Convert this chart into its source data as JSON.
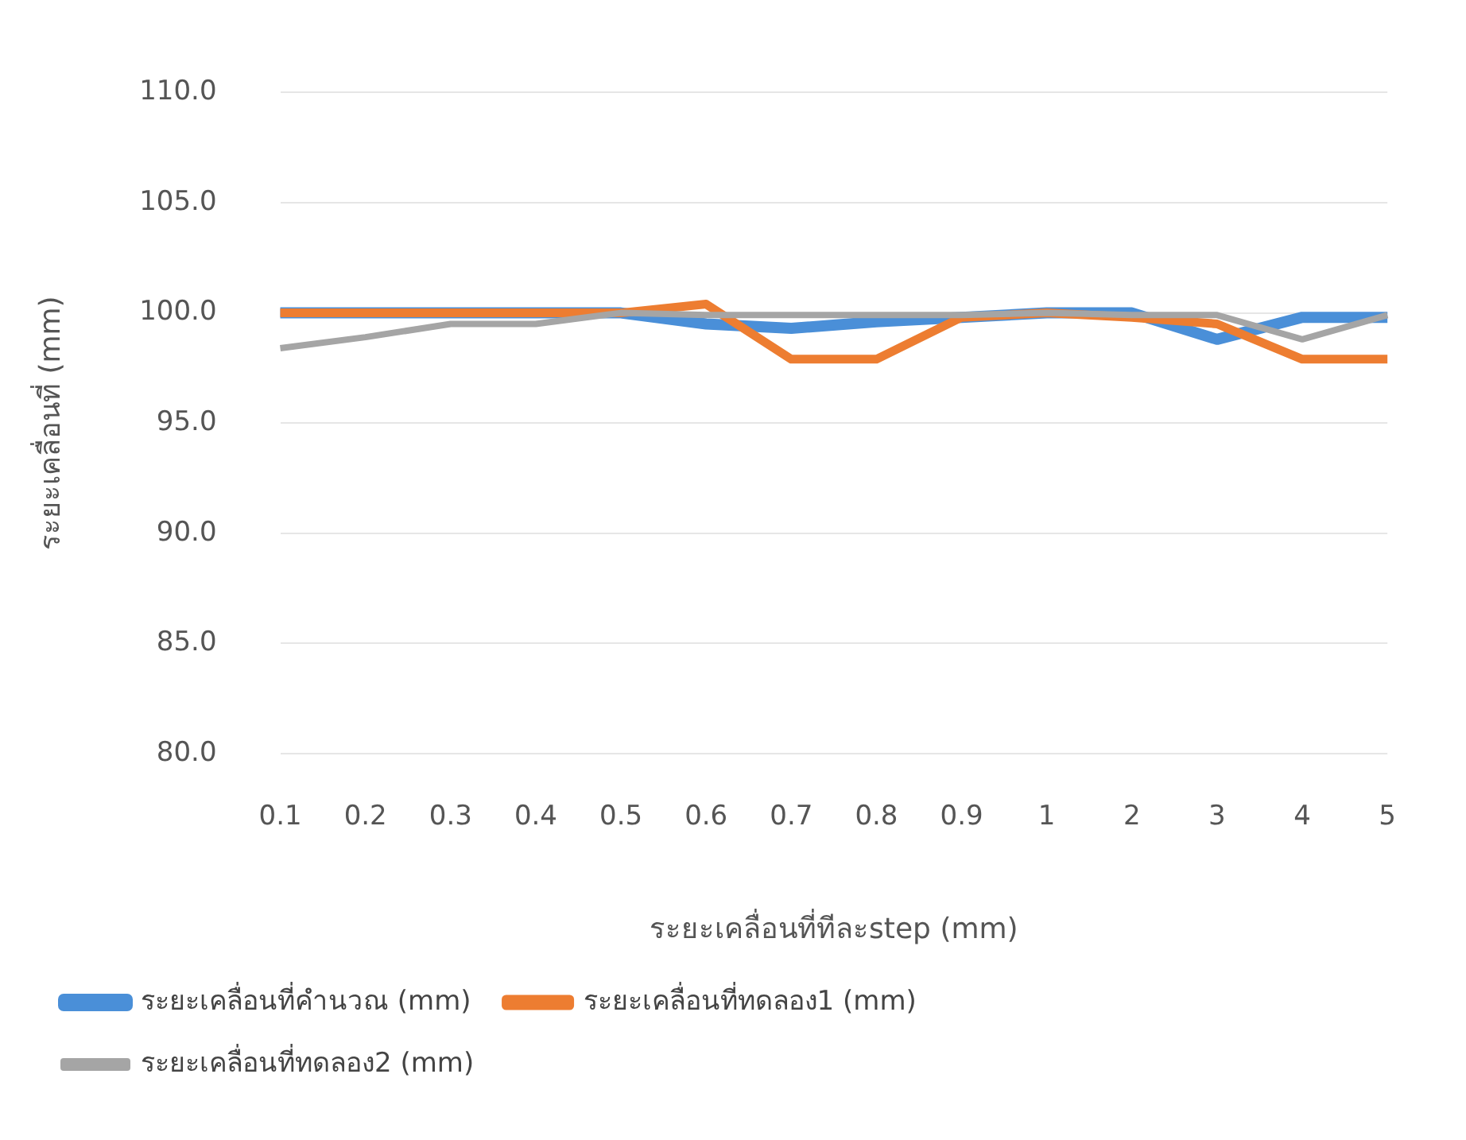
{
  "chart_data": {
    "type": "line",
    "xlabel": "ระยะเคลื่อนที่ทีละstep (mm)",
    "ylabel": "ระยะเคลื่อนที่ (mm)",
    "categories": [
      "0.1",
      "0.2",
      "0.3",
      "0.4",
      "0.5",
      "0.6",
      "0.7",
      "0.8",
      "0.9",
      "1",
      "2",
      "3",
      "4",
      "5"
    ],
    "series": [
      {
        "name": "ระยะเคลื่อนที่คำนวณ (mm)",
        "color": "#4a8fd8",
        "values": [
          100,
          100,
          100,
          100,
          100,
          99.5,
          99.3,
          99.6,
          99.8,
          100,
          100,
          98.8,
          99.8,
          99.8
        ]
      },
      {
        "name": "ระยะเคลื่อนที่ทดลอง1 (mm)",
        "color": "#ed7d31",
        "values": [
          100,
          100,
          100,
          100,
          100,
          100.4,
          97.9,
          97.9,
          99.8,
          100,
          99.8,
          99.5,
          97.9,
          97.9
        ]
      },
      {
        "name": "ระยะเคลื่อนที่ทดลอง2 (mm)",
        "color": "#a5a5a5",
        "values": [
          98.4,
          98.9,
          99.5,
          99.5,
          100,
          99.9,
          99.9,
          99.9,
          99.9,
          100,
          99.9,
          99.9,
          98.8,
          99.9
        ]
      }
    ],
    "ylim": [
      80,
      110
    ],
    "yticks": [
      {
        "value": 80,
        "label": "80.0"
      },
      {
        "value": 85,
        "label": "85.0"
      },
      {
        "value": 90,
        "label": "90.0"
      },
      {
        "value": 95,
        "label": "95.0"
      },
      {
        "value": 100,
        "label": "100.0"
      },
      {
        "value": 105,
        "label": "105.0"
      },
      {
        "value": 110,
        "label": "110.0"
      }
    ],
    "grid": "y",
    "legend": "bottom",
    "marker": "none",
    "line_style": "solid"
  }
}
